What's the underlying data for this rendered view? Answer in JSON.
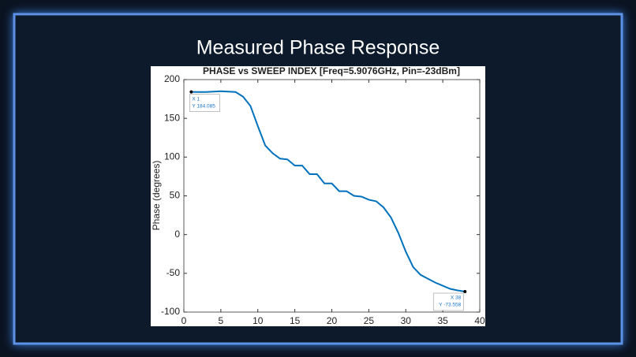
{
  "slide": {
    "title": "Measured Phase Response"
  },
  "chart_data": {
    "type": "line",
    "title": "PHASE vs SWEEP INDEX [Freq=5.9076GHz, Pin=-23dBm]",
    "ylabel": "Phase (degrees)",
    "x": [
      1,
      2,
      3,
      4,
      5,
      6,
      7,
      8,
      9,
      10,
      11,
      12,
      13,
      14,
      15,
      16,
      17,
      18,
      19,
      20,
      21,
      22,
      23,
      24,
      25,
      26,
      27,
      28,
      29,
      30,
      31,
      32,
      33,
      34,
      35,
      36,
      37,
      38
    ],
    "values": [
      184.085,
      184,
      184,
      184.5,
      185,
      184.5,
      184,
      178,
      166,
      140,
      115,
      105,
      98,
      97,
      89,
      89,
      78,
      78,
      66,
      66,
      56,
      56,
      50,
      49,
      45,
      43,
      35,
      22,
      2,
      -22,
      -42,
      -52,
      -57,
      -62,
      -66,
      -70,
      -72,
      -73.558
    ],
    "color": "#0072bd",
    "xlim": [
      0,
      40
    ],
    "xticks": [
      0,
      5,
      10,
      15,
      20,
      25,
      30,
      35,
      40
    ],
    "ylim": [
      -100,
      200
    ],
    "yticks": [
      -100,
      -50,
      0,
      50,
      100,
      150,
      200
    ],
    "datatips": [
      {
        "index": 0,
        "lines": [
          "X 1",
          "Y 184.085"
        ]
      },
      {
        "index": 37,
        "lines": [
          "X 38",
          "Y -73.558"
        ]
      }
    ]
  }
}
